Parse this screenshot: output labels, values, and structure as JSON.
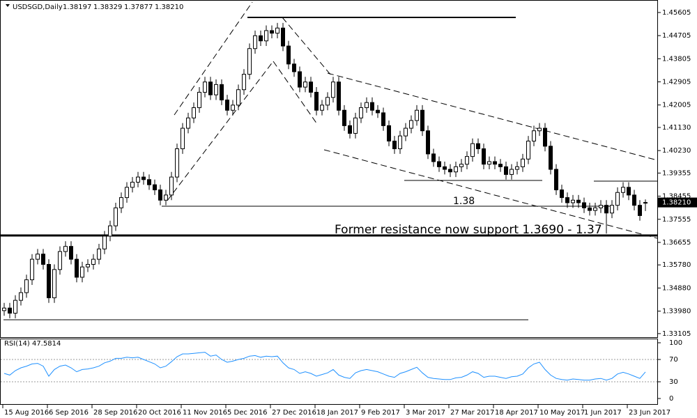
{
  "chart_data": {
    "type": "candlestick",
    "symbol": "USDSGD,Daily",
    "ohlc_labels": [
      "1.38197",
      "1.38329",
      "1.37877",
      "1.38210"
    ],
    "price_tag": "1.38210",
    "annotation_level": "1.38",
    "annotation_support": "Former resistance now support 1.3690 - 1.37",
    "bull_color": "#ffffff",
    "bear_color": "#000000",
    "categories": [
      "15 Aug 2016",
      null,
      null,
      null,
      null,
      null,
      null,
      null,
      "6 Sep 2016",
      null,
      null,
      null,
      null,
      null,
      null,
      null,
      "28 Sep 2016",
      null,
      null,
      null,
      null,
      null,
      null,
      null,
      "20 Oct 2016",
      null,
      null,
      null,
      null,
      null,
      null,
      null,
      "11 Nov 2016",
      null,
      null,
      null,
      null,
      null,
      null,
      null,
      "5 Dec 2016",
      null,
      null,
      null,
      null,
      null,
      null,
      null,
      "27 Dec 2016",
      null,
      null,
      null,
      null,
      null,
      null,
      null,
      "18 Jan 2017",
      null,
      null,
      null,
      null,
      null,
      null,
      null,
      "9 Feb 2017",
      null,
      null,
      null,
      null,
      null,
      null,
      null,
      "3 Mar 2017",
      null,
      null,
      null,
      null,
      null,
      null,
      null,
      "27 Mar 2017",
      null,
      null,
      null,
      null,
      null,
      null,
      null,
      "18 Apr 2017",
      null,
      null,
      null,
      null,
      null,
      null,
      null,
      "10 May 2017",
      null,
      null,
      null,
      null,
      null,
      null,
      null,
      "1 Jun 2017",
      null,
      null,
      null,
      null,
      null,
      null,
      null,
      "23 Jun 2017",
      null,
      null,
      null
    ],
    "open": [
      1.34,
      1.341,
      1.339,
      1.344,
      1.347,
      1.352,
      1.36,
      1.362,
      1.358,
      1.345,
      1.356,
      1.363,
      1.365,
      1.36,
      1.353,
      1.357,
      1.358,
      1.36,
      1.364,
      1.369,
      1.373,
      1.38,
      1.384,
      1.388,
      1.39,
      1.392,
      1.391,
      1.389,
      1.387,
      1.383,
      1.385,
      1.392,
      1.403,
      1.411,
      1.415,
      1.419,
      1.425,
      1.429,
      1.424,
      1.428,
      1.422,
      1.418,
      1.42,
      1.426,
      1.432,
      1.442,
      1.447,
      1.445,
      1.449,
      1.448,
      1.45,
      1.443,
      1.436,
      1.433,
      1.427,
      1.429,
      1.425,
      1.418,
      1.42,
      1.423,
      1.429,
      1.418,
      1.412,
      1.409,
      1.415,
      1.419,
      1.421,
      1.418,
      1.417,
      1.412,
      1.406,
      1.403,
      1.408,
      1.411,
      1.414,
      1.418,
      1.41,
      1.401,
      1.398,
      1.396,
      1.395,
      1.394,
      1.396,
      1.397,
      1.4,
      1.405,
      1.403,
      1.397,
      1.398,
      1.397,
      1.396,
      1.393,
      1.395,
      1.396,
      1.399,
      1.406,
      1.41,
      1.411,
      1.404,
      1.395,
      1.387,
      1.384,
      1.382,
      1.383,
      1.382,
      1.38,
      1.379,
      1.38,
      1.381,
      1.378,
      1.381,
      1.386,
      1.388,
      1.385,
      1.381,
      1.38197
    ],
    "high": [
      1.343,
      1.343,
      1.346,
      1.349,
      1.354,
      1.362,
      1.364,
      1.364,
      1.36,
      1.358,
      1.365,
      1.367,
      1.367,
      1.362,
      1.359,
      1.36,
      1.362,
      1.366,
      1.371,
      1.375,
      1.382,
      1.386,
      1.39,
      1.392,
      1.394,
      1.394,
      1.393,
      1.391,
      1.389,
      1.387,
      1.394,
      1.405,
      1.413,
      1.417,
      1.421,
      1.427,
      1.431,
      1.431,
      1.43,
      1.43,
      1.424,
      1.422,
      1.428,
      1.434,
      1.444,
      1.449,
      1.449,
      1.451,
      1.451,
      1.452,
      1.452,
      1.445,
      1.438,
      1.435,
      1.431,
      1.431,
      1.427,
      1.422,
      1.425,
      1.431,
      1.431,
      1.42,
      1.414,
      1.417,
      1.421,
      1.423,
      1.423,
      1.42,
      1.419,
      1.414,
      1.408,
      1.41,
      1.413,
      1.416,
      1.42,
      1.42,
      1.412,
      1.403,
      1.4,
      1.398,
      1.397,
      1.398,
      1.399,
      1.402,
      1.407,
      1.407,
      1.405,
      1.4,
      1.4,
      1.399,
      1.398,
      1.397,
      1.398,
      1.401,
      1.408,
      1.412,
      1.413,
      1.413,
      1.406,
      1.397,
      1.389,
      1.386,
      1.385,
      1.385,
      1.384,
      1.382,
      1.382,
      1.383,
      1.383,
      1.383,
      1.388,
      1.39,
      1.39,
      1.387,
      1.383,
      1.38329
    ],
    "low": [
      1.338,
      1.337,
      1.337,
      1.342,
      1.345,
      1.35,
      1.358,
      1.356,
      1.343,
      1.343,
      1.354,
      1.361,
      1.358,
      1.351,
      1.351,
      1.355,
      1.356,
      1.358,
      1.362,
      1.367,
      1.371,
      1.378,
      1.382,
      1.386,
      1.388,
      1.389,
      1.387,
      1.385,
      1.381,
      1.381,
      1.383,
      1.39,
      1.401,
      1.409,
      1.413,
      1.417,
      1.423,
      1.422,
      1.422,
      1.42,
      1.416,
      1.416,
      1.418,
      1.424,
      1.43,
      1.44,
      1.443,
      1.443,
      1.446,
      1.446,
      1.441,
      1.434,
      1.431,
      1.425,
      1.425,
      1.423,
      1.416,
      1.416,
      1.418,
      1.421,
      1.416,
      1.41,
      1.407,
      1.407,
      1.413,
      1.417,
      1.416,
      1.415,
      1.41,
      1.404,
      1.401,
      1.401,
      1.406,
      1.409,
      1.412,
      1.408,
      1.399,
      1.396,
      1.394,
      1.393,
      1.392,
      1.392,
      1.394,
      1.395,
      1.398,
      1.401,
      1.395,
      1.395,
      1.395,
      1.394,
      1.391,
      1.391,
      1.393,
      1.394,
      1.397,
      1.404,
      1.408,
      1.402,
      1.393,
      1.385,
      1.382,
      1.38,
      1.38,
      1.38,
      1.378,
      1.377,
      1.377,
      1.378,
      1.37,
      1.376,
      1.379,
      1.384,
      1.383,
      1.379,
      1.375,
      1.37877
    ],
    "close": [
      1.341,
      1.339,
      1.344,
      1.347,
      1.352,
      1.36,
      1.362,
      1.358,
      1.345,
      1.356,
      1.363,
      1.365,
      1.36,
      1.353,
      1.357,
      1.358,
      1.36,
      1.364,
      1.369,
      1.373,
      1.38,
      1.384,
      1.388,
      1.39,
      1.392,
      1.391,
      1.389,
      1.387,
      1.383,
      1.385,
      1.392,
      1.403,
      1.411,
      1.415,
      1.419,
      1.425,
      1.429,
      1.424,
      1.428,
      1.422,
      1.418,
      1.42,
      1.426,
      1.432,
      1.442,
      1.447,
      1.445,
      1.449,
      1.448,
      1.45,
      1.443,
      1.436,
      1.433,
      1.427,
      1.429,
      1.425,
      1.418,
      1.42,
      1.423,
      1.429,
      1.418,
      1.412,
      1.409,
      1.415,
      1.419,
      1.421,
      1.418,
      1.417,
      1.412,
      1.406,
      1.403,
      1.408,
      1.411,
      1.414,
      1.418,
      1.41,
      1.401,
      1.398,
      1.396,
      1.395,
      1.394,
      1.396,
      1.397,
      1.4,
      1.405,
      1.403,
      1.397,
      1.398,
      1.397,
      1.396,
      1.393,
      1.395,
      1.396,
      1.399,
      1.406,
      1.41,
      1.411,
      1.404,
      1.395,
      1.387,
      1.384,
      1.382,
      1.383,
      1.382,
      1.38,
      1.379,
      1.38,
      1.381,
      1.378,
      1.381,
      1.386,
      1.388,
      1.385,
      1.381,
      1.377,
      1.3821
    ],
    "ylim": [
      1.3302,
      1.4601
    ],
    "yticks": [
      1.45605,
      1.44705,
      1.43805,
      1.42905,
      1.42005,
      {
        "value": 1.4113,
        "label": "1.41130"
      },
      {
        "value": 1.4023,
        "label": "1.40230"
      },
      1.39355,
      1.38455,
      1.37555,
      1.36655,
      {
        "value": 1.3578,
        "label": "1.35780"
      },
      {
        "value": 1.3488,
        "label": "1.34880"
      },
      {
        "value": 1.3398,
        "label": "1.33980"
      },
      1.33105
    ],
    "rsi": {
      "title": "RSI(14) 47.5814",
      "color": "#1e90ff",
      "values": [
        45,
        42,
        50,
        55,
        58,
        62,
        63,
        58,
        40,
        52,
        58,
        60,
        55,
        48,
        52,
        53,
        55,
        58,
        64,
        67,
        72,
        72,
        74,
        73,
        74,
        70,
        66,
        62,
        55,
        58,
        66,
        75,
        80,
        80,
        81,
        82,
        83,
        76,
        78,
        70,
        65,
        67,
        70,
        72,
        76,
        77,
        74,
        76,
        75,
        76,
        64,
        55,
        52,
        45,
        48,
        45,
        40,
        43,
        46,
        52,
        42,
        38,
        36,
        46,
        50,
        52,
        50,
        48,
        44,
        40,
        38,
        45,
        48,
        52,
        56,
        46,
        38,
        36,
        35,
        34,
        34,
        37,
        38,
        42,
        48,
        45,
        38,
        40,
        40,
        38,
        36,
        39,
        40,
        44,
        55,
        62,
        65,
        52,
        42,
        36,
        34,
        33,
        35,
        34,
        33,
        33,
        35,
        36,
        33,
        36,
        44,
        47,
        44,
        40,
        36,
        47.5814
      ],
      "ylim": [
        0,
        100
      ],
      "yticks": [
        100,
        70,
        30,
        0
      ],
      "levels": [
        70,
        30
      ]
    }
  }
}
